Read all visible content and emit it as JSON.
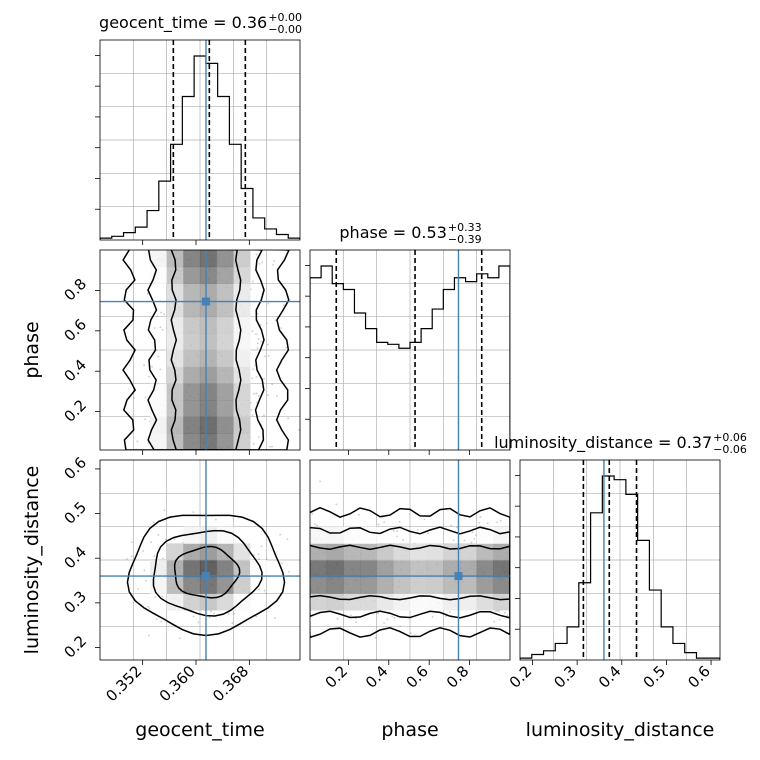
{
  "chart_data": {
    "type": "corner",
    "parameters": [
      {
        "name": "geocent_time",
        "label": "geocent_time",
        "range": [
          0.3456,
          0.3756
        ],
        "ticks": [
          0.352,
          0.36,
          0.368
        ],
        "tick_labels": [
          "0.352",
          "0.360",
          "0.368"
        ],
        "injection": 0.3615
      },
      {
        "name": "phase",
        "label": "phase",
        "range": [
          0.01,
          1.0
        ],
        "ticks": [
          0.2,
          0.4,
          0.6,
          0.8
        ],
        "tick_labels": [
          "0.2",
          "0.4",
          "0.6",
          "0.8"
        ],
        "injection": 0.745
      },
      {
        "name": "luminosity_distance",
        "label": "luminosity_distance",
        "range": [
          0.172,
          0.62
        ],
        "ticks": [
          0.2,
          0.3,
          0.4,
          0.5,
          0.6
        ],
        "tick_labels": [
          "0.2",
          "0.3",
          "0.4",
          "0.5",
          "0.6"
        ],
        "injection": 0.36
      }
    ],
    "titles": [
      {
        "name": "geocent_time",
        "value": "0.36",
        "plus": "+0.00",
        "minus": "−0.00"
      },
      {
        "name": "phase",
        "value": "0.53",
        "plus": "+0.33",
        "minus": "−0.39"
      },
      {
        "name": "luminosity_distance",
        "value": "0.37",
        "plus": "+0.06",
        "minus": "−0.06"
      }
    ],
    "quantiles": [
      {
        "name": "geocent_time",
        "values": [
          0.3566,
          0.362,
          0.3674
        ]
      },
      {
        "name": "phase",
        "values": [
          0.14,
          0.53,
          0.86
        ]
      },
      {
        "name": "luminosity_distance",
        "values": [
          0.314,
          0.372,
          0.433
        ]
      }
    ],
    "histograms": [
      {
        "name": "geocent_time",
        "edges_range": [
          0.3456,
          0.3756
        ],
        "counts": [
          1,
          2,
          4,
          7,
          16,
          32,
          52,
          78,
          100,
          96,
          78,
          52,
          28,
          12,
          6,
          3,
          1
        ]
      },
      {
        "name": "phase",
        "edges_range": [
          0.01,
          1.0
        ],
        "counts": [
          88,
          94,
          85,
          82,
          70,
          62,
          55,
          54,
          52,
          55,
          62,
          72,
          82,
          88,
          86,
          90,
          88,
          94
        ]
      },
      {
        "name": "luminosity_distance",
        "edges_range": [
          0.172,
          0.62
        ],
        "counts": [
          1,
          3,
          5,
          9,
          18,
          42,
          80,
          100,
          98,
          90,
          65,
          38,
          18,
          9,
          4,
          1,
          1
        ]
      }
    ],
    "density_2d": [
      {
        "x": "geocent_time",
        "y": "phase",
        "x_center": 0.3615,
        "x_sigma": 0.0048,
        "y_profile": [
          88,
          92,
          82,
          70,
          60,
          54,
          55,
          64,
          80,
          90
        ]
      },
      {
        "x": "geocent_time",
        "y": "luminosity_distance",
        "x_center": 0.3615,
        "x_sigma": 0.0048,
        "y_center": 0.368,
        "y_sigma": 0.056
      },
      {
        "x": "phase",
        "y": "luminosity_distance",
        "y_center": 0.368,
        "y_sigma": 0.056,
        "x_profile": [
          88,
          92,
          82,
          70,
          60,
          54,
          55,
          64,
          80,
          90
        ]
      }
    ],
    "grid": true,
    "colors": {
      "injection": "#4682b4",
      "hist": "#000000",
      "quantile": "#000000",
      "grid": "#b0b0b0",
      "points": "#999999"
    }
  }
}
